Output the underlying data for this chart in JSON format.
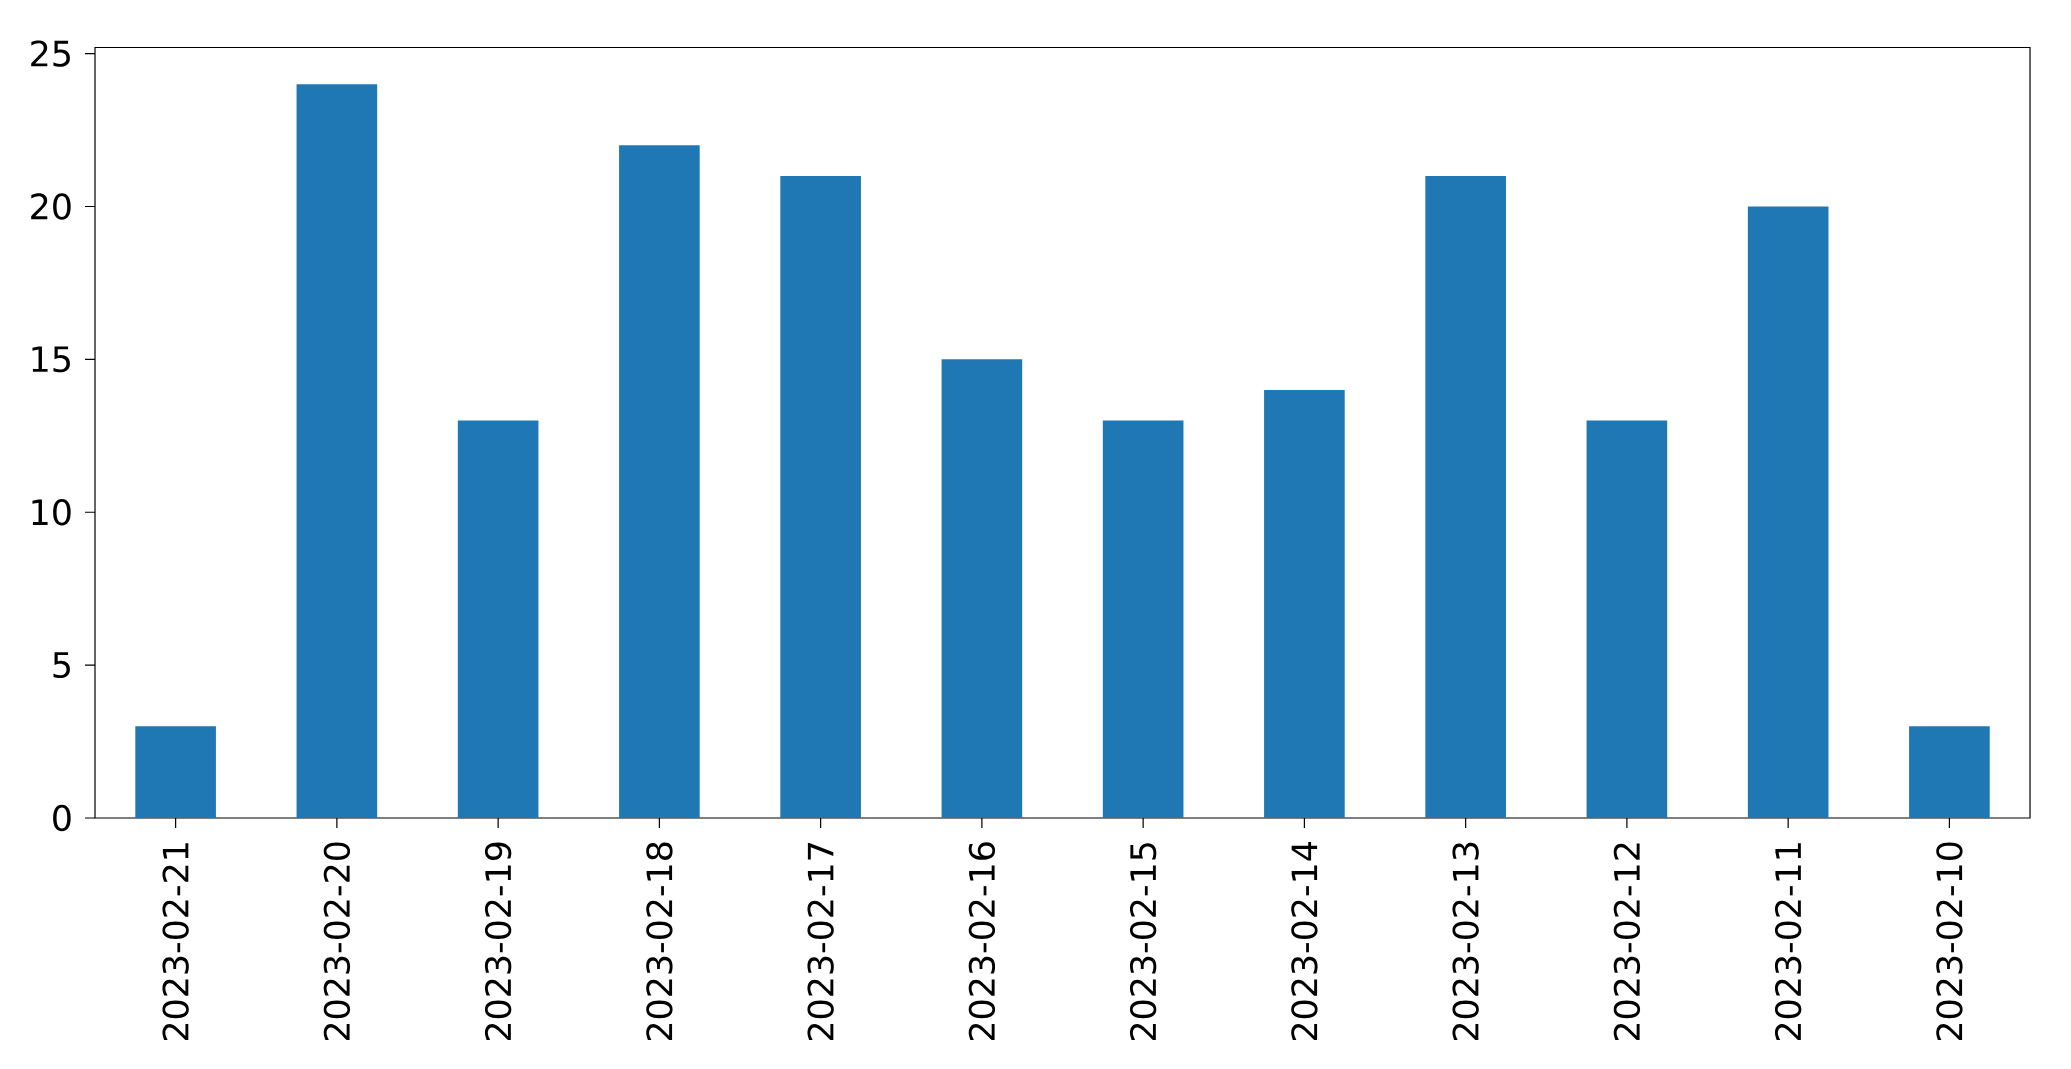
{
  "chart_data": {
    "type": "bar",
    "categories": [
      "2023-02-21",
      "2023-02-20",
      "2023-02-19",
      "2023-02-18",
      "2023-02-17",
      "2023-02-16",
      "2023-02-15",
      "2023-02-14",
      "2023-02-13",
      "2023-02-12",
      "2023-02-11",
      "2023-02-10"
    ],
    "values": [
      3,
      24,
      13,
      22,
      21,
      15,
      13,
      14,
      21,
      13,
      20,
      3
    ],
    "color": "#1f77b4",
    "ylim": [
      0,
      25.2
    ],
    "yticks": [
      0,
      5,
      10,
      15,
      20,
      25
    ]
  }
}
